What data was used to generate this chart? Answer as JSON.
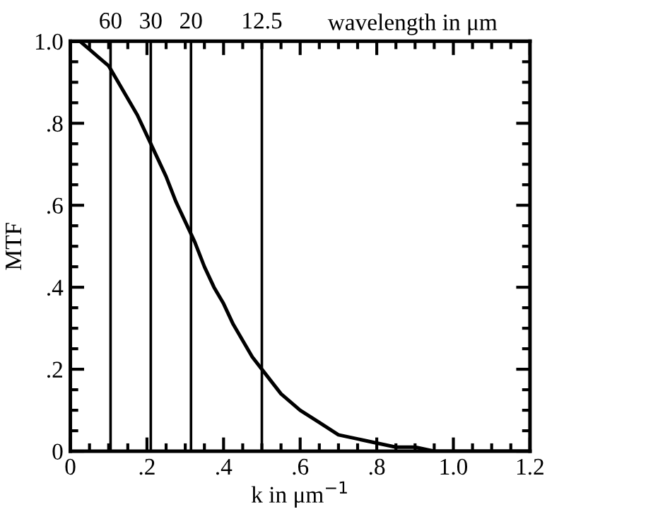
{
  "chart_data": {
    "type": "line",
    "xlabel": "k in μm$^{−1}$",
    "ylabel": "MTF",
    "annotations": [
      {
        "text": "60",
        "x": 0.105,
        "y": 1.0
      },
      {
        "text": "30",
        "x": 0.21,
        "y": 1.0
      },
      {
        "text": "20",
        "x": 0.315,
        "y": 1.0
      },
      {
        "text": "12.5",
        "x": 0.5,
        "y": 1.0
      },
      "wavelength in μm"
    ],
    "x": [
      0,
      0.025,
      0.05,
      0.075,
      0.1,
      0.125,
      0.15,
      0.175,
      0.2,
      0.225,
      0.25,
      0.275,
      0.3,
      0.325,
      0.35,
      0.375,
      0.4,
      0.425,
      0.45,
      0.475,
      0.5,
      0.55,
      0.6,
      0.65,
      0.7,
      0.75,
      0.8,
      0.85,
      0.9,
      0.95,
      1.0,
      1.1,
      1.2
    ],
    "series": [
      {
        "color": "#000000",
        "values": [
          1.0,
          1.0,
          0.98,
          0.96,
          0.94,
          0.9,
          0.86,
          0.82,
          0.77,
          0.72,
          0.67,
          0.61,
          0.56,
          0.51,
          0.45,
          0.4,
          0.36,
          0.31,
          0.27,
          0.23,
          0.2,
          0.14,
          0.1,
          0.07,
          0.04,
          0.03,
          0.02,
          0.01,
          0.01,
          0.0,
          0.0,
          0.0,
          0.0
        ]
      }
    ],
    "xlim": [
      0,
      1.2
    ],
    "ylim": [
      0,
      1.0
    ],
    "xticks": [
      0,
      {
        "value": 0.2,
        "label": ".2"
      },
      {
        "value": 0.4,
        "label": ".4"
      },
      {
        "value": 0.6,
        "label": ".6"
      },
      {
        "value": 0.8,
        "label": ".8"
      },
      {
        "value": 1.0,
        "label": "1.0"
      },
      {
        "value": 1.2,
        "label": "1.2"
      }
    ],
    "yticks": [
      0,
      {
        "value": 0.2,
        "label": ".2"
      },
      {
        "value": 0.4,
        "label": ".4"
      },
      {
        "value": 0.6,
        "label": ".6"
      },
      {
        "value": 0.8,
        "label": ".8"
      },
      {
        "value": 1.0,
        "label": "1.0"
      }
    ],
    "ref_lines": [
      {
        "axis": "x",
        "value": 0.105,
        "color": "#000000"
      },
      {
        "axis": "x",
        "value": 0.21,
        "color": "#000000"
      },
      {
        "axis": "x",
        "value": 0.315,
        "color": "#000000"
      },
      {
        "axis": "x",
        "value": 0.5,
        "color": "#000000"
      }
    ],
    "grid": false,
    "legend": false,
    "marker": "none",
    "line_style": "solid"
  }
}
